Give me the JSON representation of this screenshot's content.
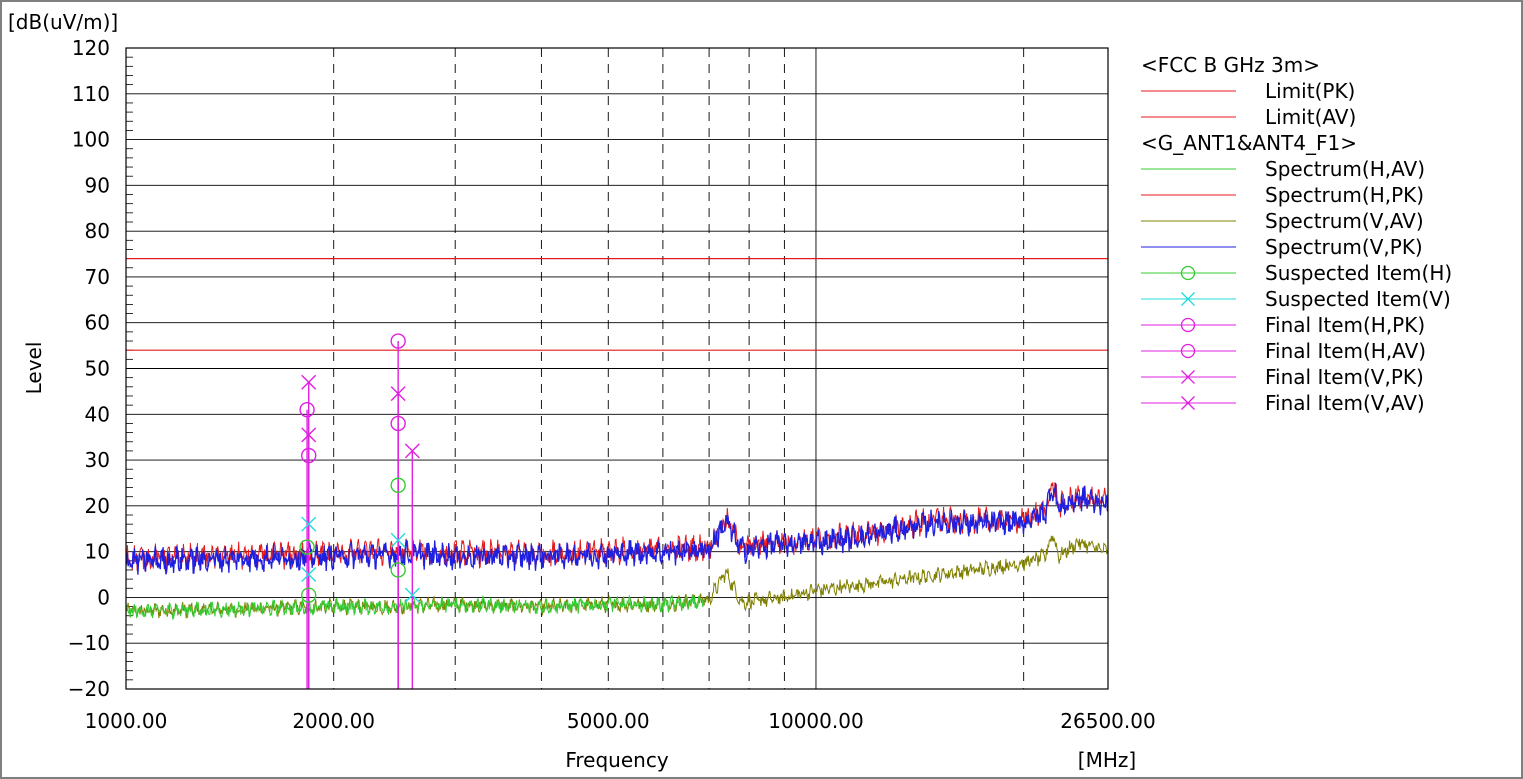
{
  "chart_data": {
    "type": "line",
    "y_unit_label": "[dB(uV/m)]",
    "ylabel": "Level",
    "xlabel": "Frequency",
    "x_unit_label": "[MHz]",
    "x_scale": "log",
    "xlim": [
      1000,
      26500
    ],
    "ylim": [
      -20,
      120
    ],
    "y_ticks": [
      120,
      110,
      100,
      90,
      80,
      70,
      60,
      50,
      40,
      30,
      20,
      10,
      0,
      -10,
      -20
    ],
    "y_tick_labels": [
      "120",
      "110",
      "100",
      "90",
      "80",
      "70",
      "60",
      "50",
      "40",
      "30",
      "20",
      "10",
      "0",
      "−10",
      "−20"
    ],
    "x_tick_labels": [
      {
        "value": 1000,
        "label": "1000.00"
      },
      {
        "value": 2000,
        "label": "2000.00"
      },
      {
        "value": 5000,
        "label": "5000.00"
      },
      {
        "value": 10000,
        "label": "10000.00"
      },
      {
        "value": 26500,
        "label": "26500.00"
      }
    ],
    "x_dashed_grid": [
      2000,
      3000,
      4000,
      5000,
      6000,
      7000,
      8000,
      9000,
      20000
    ],
    "x_solid_grid": [
      10000
    ],
    "grid": true,
    "legend_position": "right",
    "legend": [
      {
        "kind": "header",
        "text": "<FCC B GHz 3m>"
      },
      {
        "kind": "line",
        "text": "Limit(PK)",
        "color": "#e41a1c"
      },
      {
        "kind": "line",
        "text": "Limit(AV)",
        "color": "#e41a1c"
      },
      {
        "kind": "header",
        "text": "<G_ANT1&ANT4_F1>"
      },
      {
        "kind": "line",
        "text": "Spectrum(H,AV)",
        "color": "#33cc33"
      },
      {
        "kind": "line",
        "text": "Spectrum(H,PK)",
        "color": "#e41a1c"
      },
      {
        "kind": "line",
        "text": "Spectrum(V,AV)",
        "color": "#808000"
      },
      {
        "kind": "line",
        "text": "Spectrum(V,PK)",
        "color": "#1f1fe0"
      },
      {
        "kind": "circle",
        "text": "Suspected Item(H)",
        "color": "#33cc33"
      },
      {
        "kind": "cross",
        "text": "Suspected Item(V)",
        "color": "#22dddd"
      },
      {
        "kind": "circle",
        "text": "Final Item(H,PK)",
        "color": "#e020e0"
      },
      {
        "kind": "circle",
        "text": "Final Item(H,AV)",
        "color": "#e020e0"
      },
      {
        "kind": "cross",
        "text": "Final Item(V,PK)",
        "color": "#e020e0"
      },
      {
        "kind": "cross",
        "text": "Final Item(V,AV)",
        "color": "#e020e0"
      }
    ],
    "limits": [
      {
        "name": "Limit(PK)",
        "value": 74,
        "color": "#e41a1c"
      },
      {
        "name": "Limit(AV)",
        "value": 54,
        "color": "#e41a1c"
      }
    ],
    "series": [
      {
        "name": "Spectrum(H,PK)",
        "color": "#e41a1c",
        "x": [
          1000,
          1500,
          2000,
          2500,
          3000,
          4000,
          5000,
          6000,
          7000,
          7400,
          7800,
          8000,
          8500,
          10000,
          12000,
          15000,
          17000,
          20000,
          21500,
          22000,
          22500,
          24000,
          26500
        ],
        "y": [
          8.5,
          9,
          9.5,
          10,
          9.5,
          9.5,
          10,
          10.5,
          11,
          17,
          11,
          11,
          12,
          12.5,
          14,
          17,
          16.5,
          17,
          19,
          25,
          20,
          22,
          21
        ]
      },
      {
        "name": "Spectrum(V,PK)",
        "color": "#1f1fe0",
        "x": [
          1000,
          1500,
          2000,
          2500,
          3000,
          4000,
          5000,
          6000,
          7000,
          7400,
          7800,
          8000,
          8500,
          10000,
          12000,
          15000,
          17000,
          20000,
          21500,
          22000,
          22500,
          24000,
          26500
        ],
        "y": [
          8,
          8.5,
          9,
          9.5,
          9,
          9,
          9.5,
          10,
          10.5,
          16.5,
          10.5,
          10.5,
          11.5,
          12,
          13.5,
          16.5,
          16,
          16.5,
          18.5,
          24.5,
          19.5,
          21.5,
          20.5
        ]
      },
      {
        "name": "Spectrum(H,AV)",
        "color": "#33cc33",
        "x": [
          1000,
          1500,
          2000,
          2500,
          3000,
          4000,
          5000,
          6000,
          6900
        ],
        "y": [
          -3,
          -2.5,
          -2,
          -2,
          -1.5,
          -2,
          -1.5,
          -1.5,
          -1
        ]
      },
      {
        "name": "Spectrum(V,AV)",
        "color": "#808000",
        "x": [
          1000,
          1500,
          2000,
          2500,
          3000,
          4000,
          5000,
          6000,
          7000,
          7400,
          7800,
          8000,
          9000,
          10000,
          12000,
          15000,
          17000,
          20000,
          21500,
          22000,
          22500,
          24000,
          26500
        ],
        "y": [
          -3,
          -2.5,
          -2,
          -2,
          -1.5,
          -2,
          -1.5,
          -1.5,
          -0.5,
          5.5,
          -1,
          -1,
          0,
          1.5,
          3,
          5,
          6,
          7.5,
          9,
          14,
          9,
          12,
          10
        ]
      }
    ],
    "markers": [
      {
        "name": "Final Item(H,PK)",
        "shape": "circle",
        "color": "#e020e0",
        "x": 1830,
        "y": 41,
        "stem": true
      },
      {
        "name": "Final Item(H,AV)",
        "shape": "circle",
        "color": "#e020e0",
        "x": 1840,
        "y": 31,
        "stem": true
      },
      {
        "name": "Final Item(V,PK)",
        "shape": "cross",
        "color": "#e020e0",
        "x": 1840,
        "y": 47,
        "stem": true
      },
      {
        "name": "Final Item(V,AV)",
        "shape": "cross",
        "color": "#e020e0",
        "x": 1840,
        "y": 35.5,
        "stem": true
      },
      {
        "name": "Suspected Item(H)",
        "shape": "circle",
        "color": "#33cc33",
        "x": 1830,
        "y": 11,
        "stem": false
      },
      {
        "name": "Suspected Item(H)",
        "shape": "circle",
        "color": "#33cc33",
        "x": 1840,
        "y": 0.5,
        "stem": false
      },
      {
        "name": "Suspected Item(V)",
        "shape": "cross",
        "color": "#22dddd",
        "x": 1840,
        "y": 16,
        "stem": false
      },
      {
        "name": "Suspected Item(V)",
        "shape": "cross",
        "color": "#22dddd",
        "x": 1840,
        "y": 5,
        "stem": false
      },
      {
        "name": "Final Item(H,PK)",
        "shape": "circle",
        "color": "#e020e0",
        "x": 2480,
        "y": 56,
        "stem": true
      },
      {
        "name": "Final Item(H,AV)",
        "shape": "circle",
        "color": "#e020e0",
        "x": 2480,
        "y": 38,
        "stem": true
      },
      {
        "name": "Final Item(V,PK)",
        "shape": "cross",
        "color": "#e020e0",
        "x": 2480,
        "y": 44.5,
        "stem": true
      },
      {
        "name": "Final Item(V,AV)",
        "shape": "cross",
        "color": "#e020e0",
        "x": 2600,
        "y": 32,
        "stem": true
      },
      {
        "name": "Suspected Item(H)",
        "shape": "circle",
        "color": "#33cc33",
        "x": 2480,
        "y": 24.5,
        "stem": false
      },
      {
        "name": "Suspected Item(H)",
        "shape": "circle",
        "color": "#33cc33",
        "x": 2480,
        "y": 6,
        "stem": false
      },
      {
        "name": "Suspected Item(V)",
        "shape": "cross",
        "color": "#22dddd",
        "x": 2480,
        "y": 12.5,
        "stem": false
      },
      {
        "name": "Suspected Item(V)",
        "shape": "cross",
        "color": "#22dddd",
        "x": 2600,
        "y": 0.5,
        "stem": false
      }
    ]
  }
}
